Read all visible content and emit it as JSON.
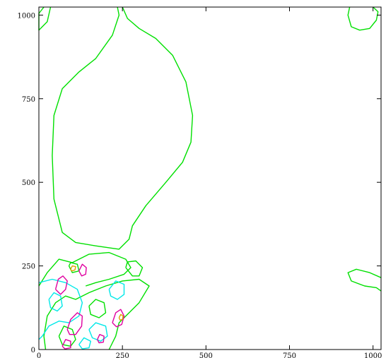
{
  "chart_data": {
    "type": "contour",
    "title": "",
    "xlabel": "",
    "ylabel": "",
    "xlim": [
      0,
      1024
    ],
    "ylim": [
      0,
      1024
    ],
    "x_ticks": [
      0,
      250,
      500,
      750,
      1000
    ],
    "y_ticks": [
      0,
      250,
      500,
      750,
      1000
    ],
    "x_tick_labels": [
      "0",
      "250",
      "500",
      "750",
      "1000"
    ],
    "y_tick_labels": [
      "0",
      "250",
      "500",
      "750",
      "1000"
    ],
    "grid": false,
    "levels": [
      {
        "color": "#00e000",
        "contours": [
          [
            [
              15,
              1024
            ],
            [
              0,
              1005
            ],
            [
              0,
              955
            ],
            [
              25,
              980
            ],
            [
              35,
              1024
            ]
          ],
          [
            [
              250,
              1024
            ],
            [
              265,
              990
            ],
            [
              300,
              960
            ],
            [
              350,
              930
            ],
            [
              400,
              880
            ],
            [
              440,
              800
            ],
            [
              460,
              700
            ],
            [
              455,
              620
            ],
            [
              430,
              560
            ],
            [
              380,
              500
            ],
            [
              320,
              430
            ],
            [
              280,
              370
            ],
            [
              270,
              330
            ],
            [
              240,
              300
            ],
            [
              170,
              310
            ],
            [
              110,
              320
            ],
            [
              70,
              350
            ],
            [
              45,
              450
            ],
            [
              40,
              580
            ],
            [
              45,
              700
            ],
            [
              70,
              780
            ],
            [
              120,
              830
            ],
            [
              170,
              870
            ],
            [
              220,
              940
            ],
            [
              240,
              1000
            ],
            [
              235,
              1024
            ]
          ],
          [
            [
              930,
              1024
            ],
            [
              925,
              1000
            ],
            [
              935,
              965
            ],
            [
              960,
              955
            ],
            [
              990,
              960
            ],
            [
              1010,
              985
            ],
            [
              1015,
              1010
            ],
            [
              1000,
              1024
            ]
          ],
          [
            [
              1024,
              215
            ],
            [
              990,
              230
            ],
            [
              950,
              240
            ],
            [
              925,
              230
            ],
            [
              935,
              205
            ],
            [
              975,
              190
            ],
            [
              1010,
              185
            ],
            [
              1024,
              175
            ]
          ],
          [
            [
              0,
              190
            ],
            [
              25,
              230
            ],
            [
              60,
              270
            ],
            [
              100,
              260
            ],
            [
              150,
              285
            ],
            [
              210,
              290
            ],
            [
              260,
              270
            ],
            [
              275,
              245
            ],
            [
              255,
              225
            ],
            [
              210,
              210
            ],
            [
              170,
              200
            ],
            [
              140,
              190
            ]
          ],
          [
            [
              20,
              0
            ],
            [
              15,
              40
            ],
            [
              25,
              100
            ],
            [
              50,
              140
            ],
            [
              80,
              160
            ],
            [
              110,
              150
            ],
            [
              150,
              170
            ],
            [
              200,
              190
            ],
            [
              250,
              205
            ],
            [
              300,
              210
            ],
            [
              330,
              190
            ],
            [
              300,
              140
            ],
            [
              260,
              100
            ],
            [
              240,
              80
            ],
            [
              230,
              40
            ],
            [
              210,
              0
            ]
          ],
          [
            [
              90,
              250
            ],
            [
              100,
              230
            ],
            [
              120,
              235
            ],
            [
              115,
              255
            ],
            [
              95,
              260
            ],
            [
              90,
              250
            ]
          ],
          [
            [
              60,
              40
            ],
            [
              75,
              70
            ],
            [
              100,
              60
            ],
            [
              110,
              30
            ],
            [
              95,
              10
            ],
            [
              70,
              15
            ],
            [
              60,
              40
            ]
          ],
          [
            [
              150,
              130
            ],
            [
              170,
              150
            ],
            [
              195,
              140
            ],
            [
              200,
              110
            ],
            [
              180,
              95
            ],
            [
              155,
              105
            ],
            [
              150,
              130
            ]
          ],
          [
            [
              260,
              245
            ],
            [
              280,
              220
            ],
            [
              300,
              220
            ],
            [
              310,
              245
            ],
            [
              290,
              265
            ],
            [
              265,
              262
            ],
            [
              260,
              245
            ]
          ]
        ]
      },
      {
        "color": "#00e8e8",
        "contours": [
          [
            [
              0,
              200
            ],
            [
              40,
              210
            ],
            [
              80,
              200
            ],
            [
              115,
              180
            ],
            [
              130,
              140
            ],
            [
              120,
              100
            ],
            [
              90,
              80
            ],
            [
              60,
              85
            ],
            [
              30,
              70
            ],
            [
              10,
              40
            ],
            [
              0,
              30
            ]
          ],
          [
            [
              30,
              150
            ],
            [
              45,
              170
            ],
            [
              65,
              160
            ],
            [
              70,
              130
            ],
            [
              55,
              115
            ],
            [
              35,
              125
            ],
            [
              30,
              150
            ]
          ],
          [
            [
              150,
              60
            ],
            [
              170,
              80
            ],
            [
              200,
              70
            ],
            [
              205,
              40
            ],
            [
              185,
              25
            ],
            [
              160,
              35
            ],
            [
              150,
              60
            ]
          ],
          [
            [
              210,
              180
            ],
            [
              230,
              205
            ],
            [
              255,
              195
            ],
            [
              255,
              165
            ],
            [
              235,
              150
            ],
            [
              215,
              160
            ],
            [
              210,
              180
            ]
          ],
          [
            [
              120,
              15
            ],
            [
              135,
              35
            ],
            [
              155,
              25
            ],
            [
              150,
              5
            ],
            [
              130,
              2
            ],
            [
              120,
              15
            ]
          ]
        ]
      },
      {
        "color": "#e000a0",
        "contours": [
          [
            [
              50,
              180
            ],
            [
              58,
              210
            ],
            [
              72,
              220
            ],
            [
              85,
              205
            ],
            [
              80,
              180
            ],
            [
              65,
              165
            ],
            [
              50,
              180
            ]
          ],
          [
            [
              120,
              235
            ],
            [
              130,
              255
            ],
            [
              142,
              245
            ],
            [
              140,
              225
            ],
            [
              128,
              220
            ],
            [
              120,
              235
            ]
          ],
          [
            [
              85,
              60
            ],
            [
              95,
              90
            ],
            [
              115,
              110
            ],
            [
              130,
              100
            ],
            [
              128,
              70
            ],
            [
              110,
              45
            ],
            [
              92,
              45
            ],
            [
              85,
              60
            ]
          ],
          [
            [
              70,
              10
            ],
            [
              80,
              30
            ],
            [
              95,
              25
            ],
            [
              95,
              5
            ],
            [
              78,
              2
            ],
            [
              70,
              10
            ]
          ],
          [
            [
              175,
              30
            ],
            [
              182,
              45
            ],
            [
              195,
              40
            ],
            [
              193,
              22
            ],
            [
              180,
              20
            ],
            [
              175,
              30
            ]
          ],
          [
            [
              220,
              80
            ],
            [
              230,
              110
            ],
            [
              245,
              120
            ],
            [
              255,
              100
            ],
            [
              248,
              75
            ],
            [
              232,
              68
            ],
            [
              220,
              80
            ]
          ]
        ]
      },
      {
        "color": "#e0a000",
        "contours": [
          [
            [
              95,
              240
            ],
            [
              100,
              250
            ],
            [
              110,
              248
            ],
            [
              108,
              238
            ],
            [
              98,
              235
            ],
            [
              95,
              240
            ]
          ],
          [
            [
              240,
              95
            ],
            [
              245,
              105
            ],
            [
              252,
              100
            ],
            [
              250,
              90
            ],
            [
              243,
              88
            ],
            [
              240,
              95
            ]
          ]
        ]
      }
    ]
  }
}
